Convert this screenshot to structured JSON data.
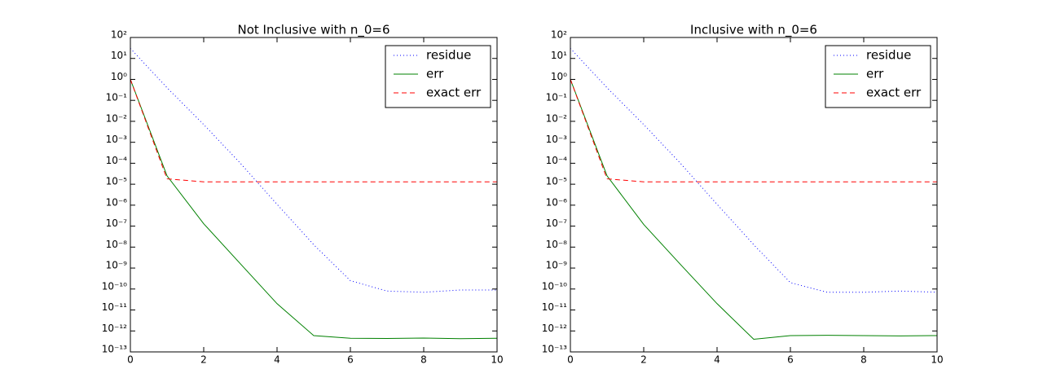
{
  "chart_data": [
    {
      "type": "line",
      "title": "Not Inclusive with n_0=6",
      "log_y": true,
      "legend": "upper right",
      "x": [
        0,
        1,
        2,
        3,
        4,
        5,
        6,
        7,
        8,
        9,
        10
      ],
      "series": [
        {
          "name": "residue",
          "color": "#0000ff",
          "style": "dotted",
          "values": [
            30,
            0.4,
            0.007,
            0.0001,
            1.1e-06,
            1.3e-08,
            2.5e-10,
            8e-11,
            7e-11,
            9e-11,
            9e-11
          ]
        },
        {
          "name": "err",
          "color": "#008000",
          "style": "solid",
          "values": [
            1,
            2.5e-05,
            1.3e-07,
            1.6e-09,
            2e-11,
            6e-13,
            4.5e-13,
            4.4e-13,
            4.6e-13,
            4.3e-13,
            4.5e-13
          ]
        },
        {
          "name": "exact err",
          "color": "#ff0000",
          "style": "dashed",
          "values": [
            1,
            1.8e-05,
            1.3e-05,
            1.3e-05,
            1.3e-05,
            1.3e-05,
            1.3e-05,
            1.3e-05,
            1.3e-05,
            1.3e-05,
            1.3e-05
          ]
        }
      ],
      "xlim": [
        0,
        10
      ],
      "xticks": [
        0,
        2,
        4,
        6,
        8,
        10
      ],
      "ylim": [
        1e-13,
        100
      ],
      "yticks": [
        {
          "value": 1e-13,
          "label": "10⁻¹³"
        },
        {
          "value": 1e-12,
          "label": "10⁻¹²"
        },
        {
          "value": 1e-11,
          "label": "10⁻¹¹"
        },
        {
          "value": 1e-10,
          "label": "10⁻¹⁰"
        },
        {
          "value": 1e-09,
          "label": "10⁻⁹"
        },
        {
          "value": 1e-08,
          "label": "10⁻⁸"
        },
        {
          "value": 1e-07,
          "label": "10⁻⁷"
        },
        {
          "value": 1e-06,
          "label": "10⁻⁶"
        },
        {
          "value": 1e-05,
          "label": "10⁻⁵"
        },
        {
          "value": 0.0001,
          "label": "10⁻⁴"
        },
        {
          "value": 0.001,
          "label": "10⁻³"
        },
        {
          "value": 0.01,
          "label": "10⁻²"
        },
        {
          "value": 0.1,
          "label": "10⁻¹"
        },
        {
          "value": 1,
          "label": "10⁰"
        },
        {
          "value": 10,
          "label": "10¹"
        },
        {
          "value": 100,
          "label": "10²"
        }
      ]
    },
    {
      "type": "line",
      "title": "Inclusive with n_0=6",
      "log_y": true,
      "legend": "upper right",
      "x": [
        0,
        1,
        2,
        3,
        4,
        5,
        6,
        7,
        8,
        9,
        10
      ],
      "series": [
        {
          "name": "residue",
          "color": "#0000ff",
          "style": "dotted",
          "values": [
            30,
            0.4,
            0.007,
            0.0001,
            1.1e-06,
            1.3e-08,
            2e-10,
            7e-11,
            7e-11,
            8e-11,
            7e-11
          ]
        },
        {
          "name": "err",
          "color": "#008000",
          "style": "solid",
          "values": [
            1,
            2.5e-05,
            1.2e-07,
            1.5e-09,
            2e-11,
            4e-13,
            6e-13,
            6.2e-13,
            6e-13,
            5.8e-13,
            6e-13
          ]
        },
        {
          "name": "exact err",
          "color": "#ff0000",
          "style": "dashed",
          "values": [
            1,
            1.8e-05,
            1.3e-05,
            1.3e-05,
            1.3e-05,
            1.3e-05,
            1.3e-05,
            1.3e-05,
            1.3e-05,
            1.3e-05,
            1.3e-05
          ]
        }
      ],
      "xlim": [
        0,
        10
      ],
      "xticks": [
        0,
        2,
        4,
        6,
        8,
        10
      ],
      "ylim": [
        1e-13,
        100
      ],
      "yticks": [
        {
          "value": 1e-13,
          "label": "10⁻¹³"
        },
        {
          "value": 1e-12,
          "label": "10⁻¹²"
        },
        {
          "value": 1e-11,
          "label": "10⁻¹¹"
        },
        {
          "value": 1e-10,
          "label": "10⁻¹⁰"
        },
        {
          "value": 1e-09,
          "label": "10⁻⁹"
        },
        {
          "value": 1e-08,
          "label": "10⁻⁸"
        },
        {
          "value": 1e-07,
          "label": "10⁻⁷"
        },
        {
          "value": 1e-06,
          "label": "10⁻⁶"
        },
        {
          "value": 1e-05,
          "label": "10⁻⁵"
        },
        {
          "value": 0.0001,
          "label": "10⁻⁴"
        },
        {
          "value": 0.001,
          "label": "10⁻³"
        },
        {
          "value": 0.01,
          "label": "10⁻²"
        },
        {
          "value": 0.1,
          "label": "10⁻¹"
        },
        {
          "value": 1,
          "label": "10⁰"
        },
        {
          "value": 10,
          "label": "10¹"
        },
        {
          "value": 100,
          "label": "10²"
        }
      ]
    }
  ]
}
